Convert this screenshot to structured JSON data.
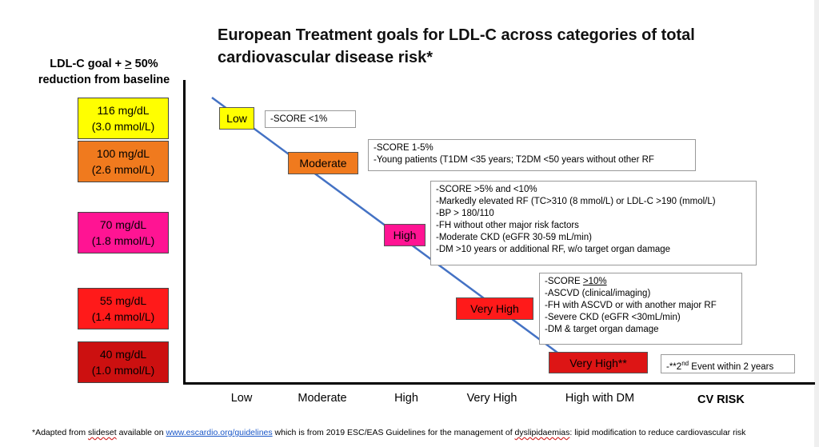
{
  "title": "European Treatment goals for LDL-C across categories of total cardiovascular disease risk*",
  "y_axis_title": {
    "line1_prefix": "LDL-C goal + ",
    "line1_symbol": ">",
    "line1_suffix": " 50%",
    "line2": "reduction from baseline"
  },
  "goals": [
    {
      "mgdl": "116 mg/dL",
      "mmol": "(3.0 mmol/L)",
      "color": "#ffff00"
    },
    {
      "mgdl": "100 mg/dL",
      "mmol": "(2.6 mmol/L)",
      "color": "#f07a1e"
    },
    {
      "mgdl": "70 mg/dL",
      "mmol": "(1.8 mmol/L)",
      "color": "#ff1493"
    },
    {
      "mgdl": "55 mg/dL",
      "mmol": "(1.4 mmol/L)",
      "color": "#ff1a1a"
    },
    {
      "mgdl": "40 mg/dL",
      "mmol": "(1.0 mmol/L)",
      "color": "#cc1010"
    }
  ],
  "risk_levels": [
    {
      "label": "Low",
      "color": "#ffff00"
    },
    {
      "label": "Moderate",
      "color": "#f07a1e"
    },
    {
      "label": "High",
      "color": "#ff1493"
    },
    {
      "label": "Very High",
      "color": "#ff1a1a"
    },
    {
      "label": "Very High**",
      "color": "#dd1515"
    }
  ],
  "criteria": {
    "low": [
      "-SCORE <1%"
    ],
    "moderate": [
      "-SCORE 1-5%",
      "-Young patients (T1DM <35 years; T2DM <50 years without other RF"
    ],
    "high": [
      "-SCORE >5% and <10%",
      "-Markedly elevated RF (TC>310 (8 mmol/L) or LDL-C >190 (mmol/L)",
      "-BP > 180/110",
      "-FH without other major risk factors",
      "-Moderate CKD (eGFR 30-59 mL/min)",
      "-DM >10 years or additional RF, w/o target organ damage"
    ],
    "very_high": {
      "score_prefix": "-SCORE ",
      "score_value": ">10%",
      "items": [
        "-ASCVD (clinical/imaging)",
        "-FH with ASCVD or with another major RF",
        "-Severe CKD (eGFR <30mL/min)",
        "-DM & target organ damage"
      ]
    },
    "very_high_dm": {
      "prefix": "-**2",
      "sup": "nd",
      "suffix": " Event within 2 years"
    }
  },
  "x_axis": {
    "ticks": [
      "Low",
      "Moderate",
      "High",
      "Very High",
      "High with DM"
    ],
    "title": "CV RISK"
  },
  "footnote": {
    "text1": "*Adapted from ",
    "slideset": "slideset",
    "text2": " available on ",
    "link": "www.escardio.org/guidelines",
    "text3": " which is from 2019 ESC/EAS Guidelines for the management of ",
    "dyslipidaemias": "dyslipidaemias",
    "text4": ": lipid modification to reduce cardiovascular risk"
  },
  "colors": {
    "trend_line": "#4472c4"
  }
}
